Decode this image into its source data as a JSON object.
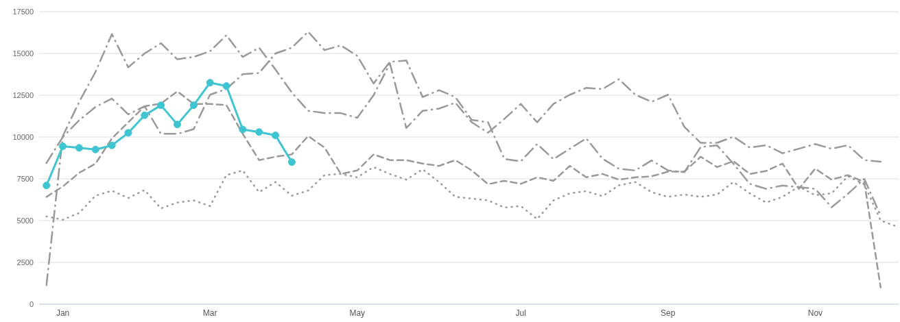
{
  "chart_data": {
    "type": "line",
    "categories": [
      null,
      "Jan",
      null,
      null,
      null,
      null,
      null,
      null,
      null,
      null,
      "Mar",
      null,
      null,
      null,
      null,
      null,
      null,
      null,
      null,
      "May",
      null,
      null,
      null,
      null,
      null,
      null,
      null,
      null,
      null,
      "Jul",
      null,
      null,
      null,
      null,
      null,
      null,
      null,
      null,
      "Sep",
      null,
      null,
      null,
      null,
      null,
      null,
      null,
      null,
      "Nov",
      null,
      null,
      null,
      null,
      null
    ],
    "series": [
      {
        "color": "#999999",
        "line_style": "dotted",
        "marker": "none",
        "values": [
          5250,
          5050,
          5460,
          6490,
          6790,
          6350,
          6830,
          5730,
          6080,
          6210,
          5870,
          7720,
          8000,
          6700,
          7310,
          6490,
          6800,
          7720,
          7790,
          7590,
          8200,
          7790,
          7450,
          8070,
          7310,
          6420,
          6320,
          6210,
          5780,
          5870,
          5090,
          6210,
          6630,
          6760,
          6460,
          7110,
          7310,
          6700,
          6420,
          6560,
          6420,
          6560,
          7310,
          6630,
          6080,
          6420,
          7040,
          6520,
          6630,
          7650,
          7170,
          5010,
          4640
        ]
      },
      {
        "color": "#999999",
        "line_style": "dashed",
        "marker": "none",
        "values": [
          6420,
          7040,
          7860,
          8410,
          9920,
          10880,
          11840,
          12000,
          12730,
          11980,
          11980,
          11910,
          10190,
          8620,
          8820,
          8960,
          10060,
          9370,
          7790,
          8000,
          8960,
          8620,
          8620,
          8410,
          8270,
          8620,
          8000,
          7180,
          7380,
          7200,
          7590,
          7380,
          8270,
          7590,
          7790,
          7450,
          7590,
          7650,
          7930,
          7930,
          8820,
          8200,
          8550,
          7790,
          7970,
          8410,
          6900,
          8110,
          7450,
          7720,
          7310,
          1000,
          null
        ]
      },
      {
        "color": "#999999",
        "line_style": "dashdot",
        "marker": "none",
        "values": [
          8450,
          10000,
          11000,
          11800,
          12300,
          11360,
          11840,
          10190,
          10190,
          10470,
          12530,
          12870,
          13760,
          13830,
          15000,
          15340,
          16300,
          15200,
          15480,
          14860,
          13200,
          14500,
          14580,
          12390,
          12800,
          12390,
          11020,
          10880,
          8680,
          8550,
          9580,
          8680,
          9300,
          9920,
          8700,
          8100,
          8000,
          8600,
          8000,
          7900,
          9400,
          9500,
          8400,
          7200,
          6900,
          7100,
          7000,
          6900,
          5800,
          6600,
          7500,
          5300,
          null
        ]
      },
      {
        "color": "#999999",
        "line_style": "dashdot",
        "marker": "none",
        "values": [
          1140,
          10060,
          12100,
          13900,
          16160,
          14170,
          15000,
          15610,
          14650,
          14790,
          15130,
          16090,
          14790,
          15340,
          14040,
          12660,
          11570,
          11430,
          11430,
          11150,
          12500,
          14400,
          10540,
          11570,
          11700,
          12050,
          10880,
          10260,
          11090,
          11980,
          10880,
          11980,
          12530,
          12940,
          12870,
          13460,
          12530,
          12110,
          12530,
          10610,
          9650,
          9650,
          10020,
          9370,
          9510,
          9030,
          9300,
          9580,
          9300,
          9510,
          8620,
          8520,
          null
        ]
      },
      {
        "color": "#3fc5d1",
        "line_style": "solid",
        "marker": "circle",
        "values": [
          7100,
          9450,
          9350,
          9250,
          9500,
          10250,
          11300,
          11900,
          10750,
          11900,
          13250,
          13050,
          10450,
          10300,
          10100,
          8500,
          null,
          null,
          null,
          null,
          null,
          null,
          null,
          null,
          null,
          null,
          null,
          null,
          null,
          null,
          null,
          null,
          null,
          null,
          null,
          null,
          null,
          null,
          null,
          null,
          null,
          null,
          null,
          null,
          null,
          null,
          null,
          null,
          null,
          null,
          null,
          null,
          null
        ]
      }
    ],
    "ylim": [
      0,
      17500
    ],
    "yticks": [
      0,
      2500,
      5000,
      7500,
      10000,
      12500,
      15000,
      17500
    ],
    "grid": "y"
  }
}
